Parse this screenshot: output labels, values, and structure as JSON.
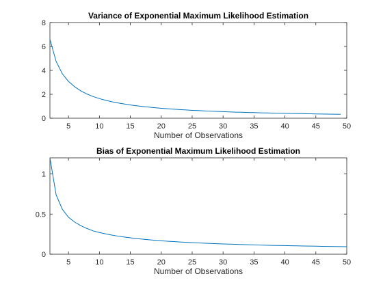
{
  "chart_data": [
    {
      "type": "line",
      "title": "Variance of Exponential Maximum Likelihood Estimation",
      "xlabel": "Number of Observations",
      "ylabel": "",
      "xlim": [
        2,
        50
      ],
      "ylim": [
        0,
        8
      ],
      "xticks": [
        5,
        10,
        15,
        20,
        25,
        30,
        35,
        40,
        45,
        50
      ],
      "yticks": [
        0,
        2,
        4,
        6,
        8
      ],
      "grid": false,
      "series_color": "#0072BD",
      "series": [
        {
          "x": [
            2,
            3,
            4,
            5,
            6,
            7,
            8,
            9,
            10,
            11,
            12,
            13,
            14,
            15,
            16,
            17,
            18,
            19,
            20,
            21,
            22,
            23,
            24,
            25,
            26,
            27,
            28,
            29,
            30,
            31,
            32,
            33,
            34,
            35,
            36,
            37,
            38,
            39,
            40,
            41,
            42,
            43,
            44,
            45,
            46,
            47,
            48,
            49
          ],
          "values": [
            6.6,
            4.75,
            3.72,
            3.08,
            2.63,
            2.28,
            2.02,
            1.81,
            1.64,
            1.5,
            1.38,
            1.28,
            1.19,
            1.11,
            1.04,
            0.98,
            0.93,
            0.88,
            0.83,
            0.79,
            0.76,
            0.72,
            0.69,
            0.66,
            0.64,
            0.61,
            0.59,
            0.57,
            0.55,
            0.53,
            0.51,
            0.5,
            0.48,
            0.47,
            0.45,
            0.44,
            0.43,
            0.42,
            0.41,
            0.4,
            0.39,
            0.38,
            0.37,
            0.36,
            0.35,
            0.345,
            0.337,
            0.33
          ]
        }
      ]
    },
    {
      "type": "line",
      "title": "Bias of Exponential Maximum Likelihood Estimation",
      "xlabel": "Number of Observations",
      "ylabel": "",
      "xlim": [
        2,
        50
      ],
      "ylim": [
        0,
        1.2
      ],
      "xticks": [
        5,
        10,
        15,
        20,
        25,
        30,
        35,
        40,
        45,
        50
      ],
      "yticks": [
        0,
        0.5,
        1
      ],
      "grid": false,
      "series_color": "#0072BD",
      "series": [
        {
          "x": [
            2,
            3,
            4,
            5,
            6,
            7,
            8,
            9,
            10,
            11,
            12,
            13,
            14,
            15,
            16,
            17,
            18,
            19,
            20,
            21,
            22,
            23,
            24,
            25,
            26,
            27,
            28,
            29,
            30,
            31,
            32,
            33,
            34,
            35,
            36,
            37,
            38,
            39,
            40,
            41,
            42,
            43,
            44,
            45,
            46,
            47,
            48,
            49,
            50
          ],
          "values": [
            1.2,
            0.74,
            0.56,
            0.46,
            0.4,
            0.355,
            0.32,
            0.29,
            0.27,
            0.253,
            0.238,
            0.225,
            0.214,
            0.204,
            0.195,
            0.187,
            0.18,
            0.173,
            0.167,
            0.162,
            0.157,
            0.152,
            0.148,
            0.144,
            0.14,
            0.137,
            0.134,
            0.131,
            0.128,
            0.125,
            0.123,
            0.12,
            0.118,
            0.116,
            0.114,
            0.112,
            0.11,
            0.108,
            0.107,
            0.105,
            0.104,
            0.102,
            0.101,
            0.0995,
            0.098,
            0.097,
            0.0955,
            0.0945,
            0.0935
          ]
        }
      ]
    }
  ]
}
